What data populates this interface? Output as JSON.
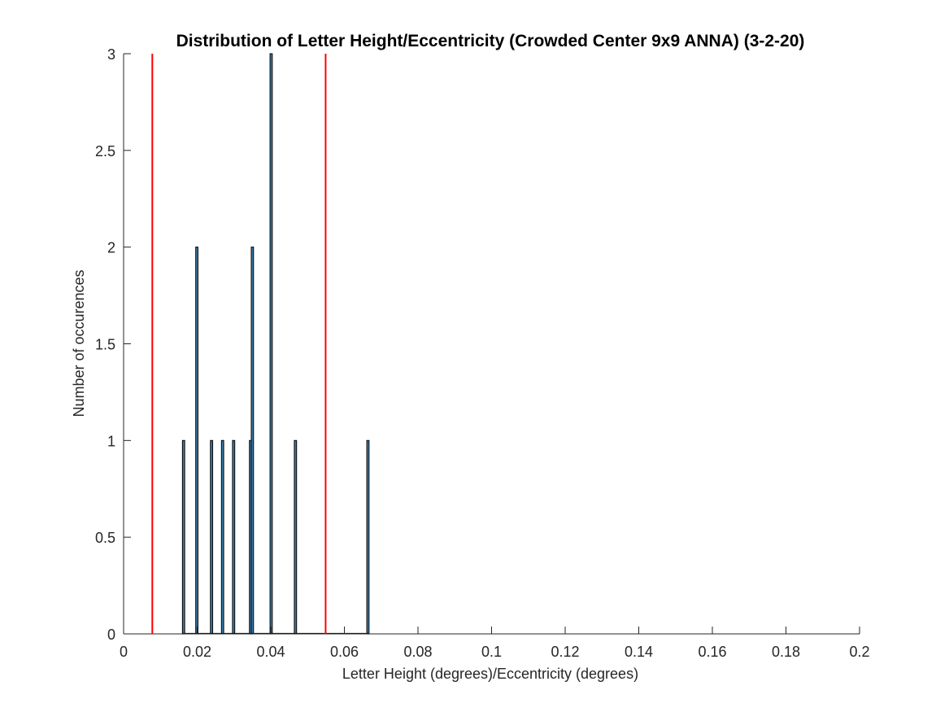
{
  "chart_data": {
    "type": "bar",
    "title": "Distribution of Letter Height/Eccentricity (Crowded Center 9x9 ANNA) (3-2-20)",
    "xlabel": "Letter Height (degrees)/Eccentricity (degrees)",
    "ylabel": "Number of occurences",
    "xlim": [
      0,
      0.2
    ],
    "ylim": [
      0,
      3
    ],
    "xticks": [
      0,
      0.02,
      0.04,
      0.06,
      0.08,
      0.1,
      0.12,
      0.14,
      0.16,
      0.18,
      0.2
    ],
    "xtick_labels": [
      "0",
      "0.02",
      "0.04",
      "0.06",
      "0.08",
      "0.1",
      "0.12",
      "0.14",
      "0.16",
      "0.18",
      "0.2"
    ],
    "yticks": [
      0,
      0.5,
      1,
      1.5,
      2,
      2.5,
      3
    ],
    "ytick_labels": [
      "0",
      "0.5",
      "1",
      "1.5",
      "2",
      "2.5",
      "3"
    ],
    "grid": false,
    "bars": {
      "x": [
        0.0163,
        0.0199,
        0.0239,
        0.0269,
        0.0299,
        0.0345,
        0.035,
        0.0401,
        0.0467,
        0.0664
      ],
      "values": [
        1,
        2,
        1,
        1,
        1,
        1,
        2,
        3,
        1,
        1
      ],
      "width": 0.0006,
      "color": "#1f4e6b"
    },
    "reference_lines": {
      "x": [
        0.0078,
        0.0549
      ],
      "color": "#ff0000"
    }
  }
}
